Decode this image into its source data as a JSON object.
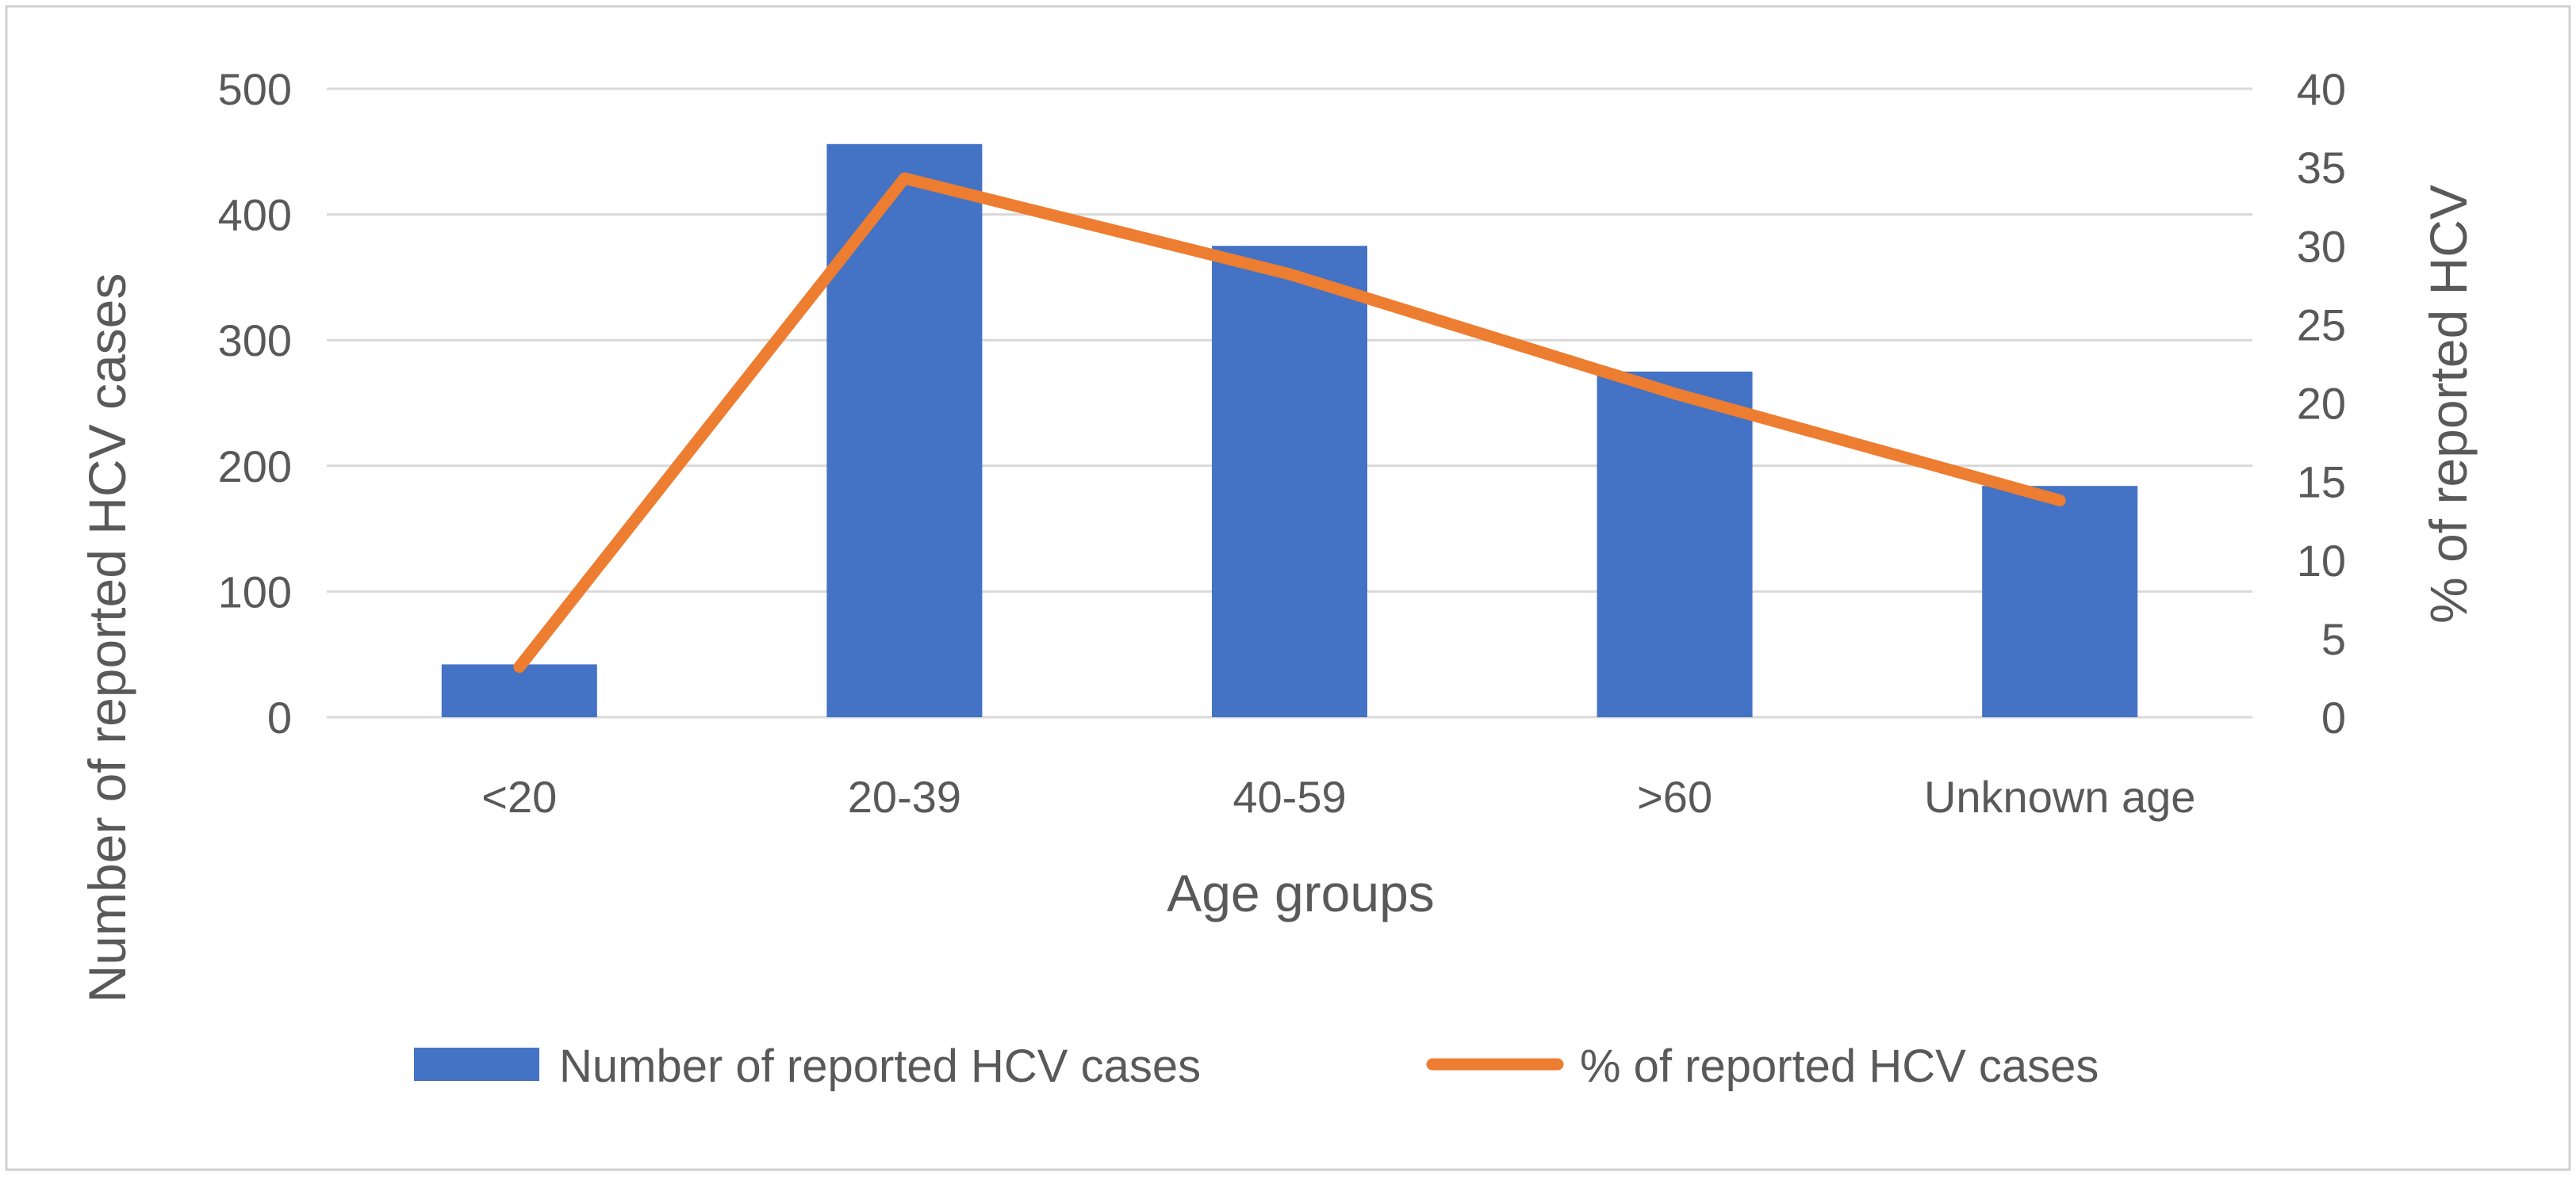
{
  "chart_data": {
    "type": "bar",
    "title": "",
    "categories": [
      "<20",
      "20-39",
      "40-59",
      ">60",
      "Unknown age"
    ],
    "series": [
      {
        "name": "Number of reported HCV cases",
        "type": "bar",
        "axis": "left",
        "color": "#4472C4",
        "values": [
          42,
          456,
          375,
          275,
          184
        ]
      },
      {
        "name": "%  of reported HCV cases",
        "type": "line",
        "axis": "right",
        "color": "#ED7D31",
        "values": [
          3.2,
          34.3,
          28.2,
          20.6,
          13.8
        ]
      }
    ],
    "xlabel": "Age groups",
    "ylabel": "Number of reported  HCV cases",
    "y2label": "% of reported  HCV",
    "ylim": [
      0,
      500
    ],
    "y2lim": [
      0,
      40
    ],
    "yticks": [
      "0",
      "100",
      "200",
      "300",
      "400",
      "500"
    ],
    "y2ticks": [
      "0",
      "5",
      "10",
      "15",
      "20",
      "25",
      "30",
      "35",
      "40"
    ],
    "grid": true,
    "legend_position": "bottom"
  },
  "colors": {
    "gridline": "#d9d9d9",
    "frame": "#d0d0d0",
    "text": "#595959"
  }
}
